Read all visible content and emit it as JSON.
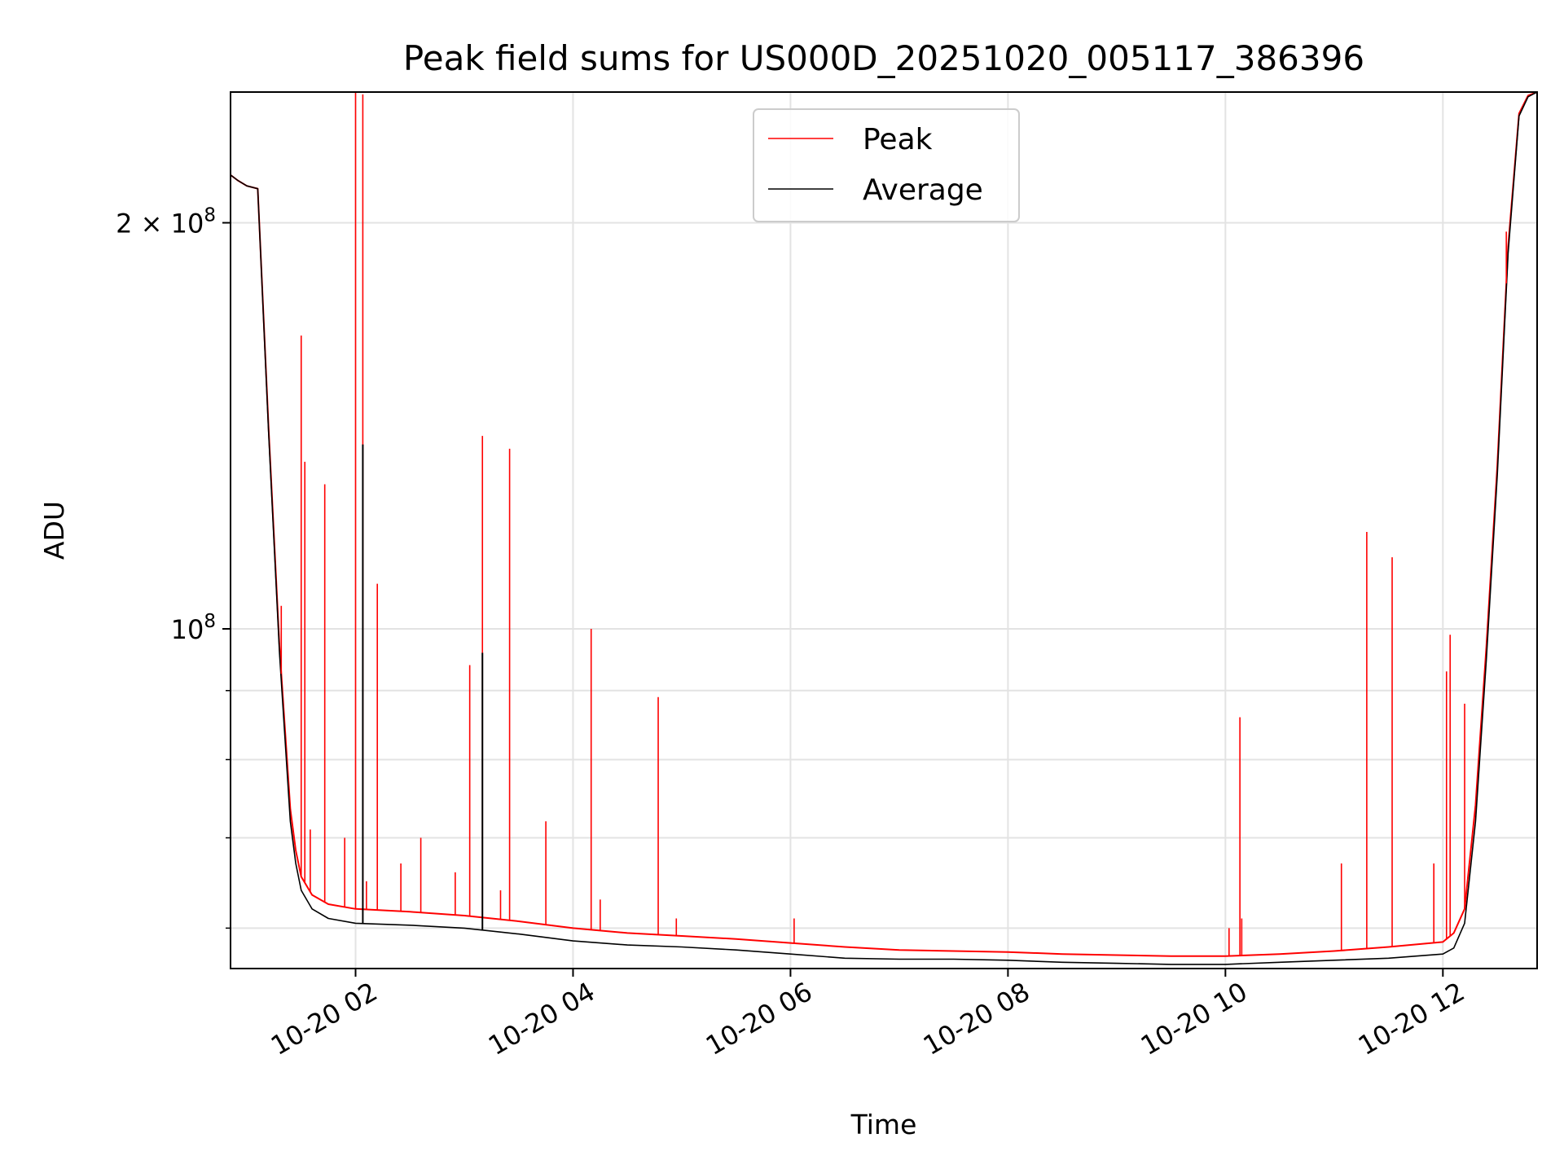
{
  "chart_data": {
    "type": "line",
    "title": "Peak field sums for US000D_20251020_005117_386396",
    "xlabel": "Time",
    "ylabel": "ADU",
    "xlim": [
      "2025-10-20 00:51",
      "2025-10-20 12:52"
    ],
    "ylim": [
      56000000,
      250000000
    ],
    "y_scale": "log",
    "x_ticks": [
      "10-20 02",
      "10-20 04",
      "10-20 06",
      "10-20 08",
      "10-20 10",
      "10-20 12"
    ],
    "y_ticks": [
      {
        "value": 200000000,
        "base": "2 × 10",
        "exp": "8"
      },
      {
        "value": 100000000,
        "base": "10",
        "exp": "8"
      }
    ],
    "grid": true,
    "legend": {
      "placement": "top-center",
      "entries": [
        "Peak",
        "Average"
      ]
    },
    "colors": {
      "Peak": "#ff0000",
      "Average": "#000000"
    },
    "series": [
      {
        "name": "Average",
        "color": "#000000",
        "x": [
          "2025-10-20 00:51",
          "2025-10-20 00:55",
          "2025-10-20 01:00",
          "2025-10-20 01:06",
          "2025-10-20 01:12",
          "2025-10-20 01:18",
          "2025-10-20 01:24",
          "2025-10-20 01:27",
          "2025-10-20 01:30",
          "2025-10-20 01:36",
          "2025-10-20 01:45",
          "2025-10-20 02:00",
          "2025-10-20 02:30",
          "2025-10-20 03:00",
          "2025-10-20 03:30",
          "2025-10-20 04:00",
          "2025-10-20 04:30",
          "2025-10-20 05:00",
          "2025-10-20 05:30",
          "2025-10-20 06:00",
          "2025-10-20 06:30",
          "2025-10-20 07:00",
          "2025-10-20 07:30",
          "2025-10-20 08:00",
          "2025-10-20 08:30",
          "2025-10-20 09:00",
          "2025-10-20 09:30",
          "2025-10-20 10:00",
          "2025-10-20 10:30",
          "2025-10-20 11:00",
          "2025-10-20 11:30",
          "2025-10-20 12:00",
          "2025-10-20 12:06",
          "2025-10-20 12:12",
          "2025-10-20 12:18",
          "2025-10-20 12:24",
          "2025-10-20 12:30",
          "2025-10-20 12:36",
          "2025-10-20 12:42",
          "2025-10-20 12:47",
          "2025-10-20 12:52"
        ],
        "values": [
          217000000,
          215000000,
          213000000,
          212000000,
          140000000,
          96000000,
          72000000,
          67000000,
          64000000,
          62000000,
          61000000,
          60500000,
          60300000,
          60000000,
          59400000,
          58700000,
          58300000,
          58100000,
          57800000,
          57400000,
          57000000,
          56900000,
          56900000,
          56800000,
          56600000,
          56500000,
          56400000,
          56400000,
          56600000,
          56800000,
          57000000,
          57400000,
          58000000,
          60500000,
          72000000,
          95000000,
          130000000,
          190000000,
          240000000,
          248000000,
          250000000
        ]
      },
      {
        "name": "Peak",
        "color": "#ff0000",
        "x": [
          "2025-10-20 00:51",
          "2025-10-20 00:55",
          "2025-10-20 01:00",
          "2025-10-20 01:06",
          "2025-10-20 01:12",
          "2025-10-20 01:18",
          "2025-10-20 01:24",
          "2025-10-20 01:27",
          "2025-10-20 01:30",
          "2025-10-20 01:36",
          "2025-10-20 01:45",
          "2025-10-20 02:00",
          "2025-10-20 02:30",
          "2025-10-20 03:00",
          "2025-10-20 03:30",
          "2025-10-20 04:00",
          "2025-10-20 04:30",
          "2025-10-20 05:00",
          "2025-10-20 05:30",
          "2025-10-20 06:00",
          "2025-10-20 06:30",
          "2025-10-20 07:00",
          "2025-10-20 07:30",
          "2025-10-20 08:00",
          "2025-10-20 08:30",
          "2025-10-20 09:00",
          "2025-10-20 09:30",
          "2025-10-20 10:00",
          "2025-10-20 10:30",
          "2025-10-20 11:00",
          "2025-10-20 11:30",
          "2025-10-20 12:00",
          "2025-10-20 12:06",
          "2025-10-20 12:12",
          "2025-10-20 12:18",
          "2025-10-20 12:24",
          "2025-10-20 12:30",
          "2025-10-20 12:36",
          "2025-10-20 12:42",
          "2025-10-20 12:47",
          "2025-10-20 12:52"
        ],
        "values": [
          217000000,
          215000000,
          213000000,
          212000000,
          141000000,
          97000000,
          73500000,
          68500000,
          65500000,
          63500000,
          62500000,
          62000000,
          61700000,
          61300000,
          60700000,
          60000000,
          59500000,
          59200000,
          58900000,
          58500000,
          58100000,
          57800000,
          57700000,
          57600000,
          57400000,
          57300000,
          57200000,
          57200000,
          57400000,
          57700000,
          58100000,
          58600000,
          59500000,
          62000000,
          74000000,
          97000000,
          132000000,
          192000000,
          241000000,
          248500000,
          250000000
        ]
      }
    ],
    "peak_spikes": [
      {
        "x": "2025-10-20 01:19",
        "value": 104000000
      },
      {
        "x": "2025-10-20 01:30",
        "value": 165000000
      },
      {
        "x": "2025-10-20 01:32",
        "value": 133000000
      },
      {
        "x": "2025-10-20 01:35",
        "value": 71000000
      },
      {
        "x": "2025-10-20 01:43",
        "value": 128000000
      },
      {
        "x": "2025-10-20 01:54",
        "value": 70000000
      },
      {
        "x": "2025-10-20 02:00",
        "value": 250000000
      },
      {
        "x": "2025-10-20 02:04",
        "value": 249000000
      },
      {
        "x": "2025-10-20 02:06",
        "value": 65000000
      },
      {
        "x": "2025-10-20 02:12",
        "value": 108000000
      },
      {
        "x": "2025-10-20 02:25",
        "value": 67000000
      },
      {
        "x": "2025-10-20 02:36",
        "value": 70000000
      },
      {
        "x": "2025-10-20 02:55",
        "value": 66000000
      },
      {
        "x": "2025-10-20 03:03",
        "value": 94000000
      },
      {
        "x": "2025-10-20 03:10",
        "value": 139000000
      },
      {
        "x": "2025-10-20 03:20",
        "value": 64000000
      },
      {
        "x": "2025-10-20 03:25",
        "value": 136000000
      },
      {
        "x": "2025-10-20 03:45",
        "value": 72000000
      },
      {
        "x": "2025-10-20 04:10",
        "value": 100000000
      },
      {
        "x": "2025-10-20 04:15",
        "value": 63000000
      },
      {
        "x": "2025-10-20 04:47",
        "value": 89000000
      },
      {
        "x": "2025-10-20 04:57",
        "value": 61000000
      },
      {
        "x": "2025-10-20 06:02",
        "value": 61000000
      },
      {
        "x": "2025-10-20 10:02",
        "value": 60000000
      },
      {
        "x": "2025-10-20 10:08",
        "value": 86000000
      },
      {
        "x": "2025-10-20 10:09",
        "value": 61000000
      },
      {
        "x": "2025-10-20 11:04",
        "value": 67000000
      },
      {
        "x": "2025-10-20 11:18",
        "value": 118000000
      },
      {
        "x": "2025-10-20 11:32",
        "value": 113000000
      },
      {
        "x": "2025-10-20 11:55",
        "value": 67000000
      },
      {
        "x": "2025-10-20 12:02",
        "value": 93000000
      },
      {
        "x": "2025-10-20 12:04",
        "value": 99000000
      },
      {
        "x": "2025-10-20 12:12",
        "value": 88000000
      },
      {
        "x": "2025-10-20 12:35",
        "value": 197000000
      }
    ],
    "average_spikes": [
      {
        "x": "2025-10-20 02:04",
        "value": 137000000
      },
      {
        "x": "2025-10-20 03:10",
        "value": 96000000
      }
    ]
  }
}
